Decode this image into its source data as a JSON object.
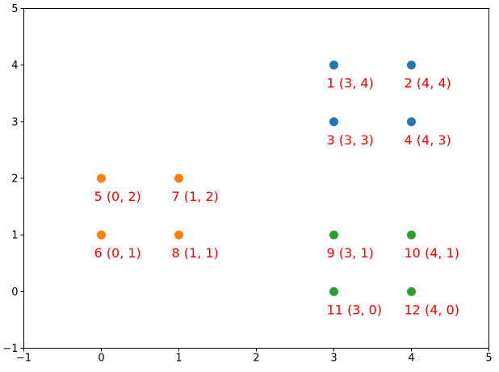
{
  "chart_data": {
    "type": "scatter",
    "xlim": [
      -1,
      5
    ],
    "ylim": [
      -1,
      5
    ],
    "xticks": [
      "−1",
      "0",
      "1",
      "2",
      "3",
      "4",
      "5"
    ],
    "yticks": [
      "−1",
      "0",
      "1",
      "2",
      "3",
      "4",
      "5"
    ],
    "grid": false,
    "label_color": "#ff0000",
    "series": [
      {
        "color": "#1f77b4",
        "points": [
          {
            "x": 3,
            "y": 4,
            "label": "1  (3, 4)"
          },
          {
            "x": 4,
            "y": 4,
            "label": "2  (4, 4)"
          },
          {
            "x": 3,
            "y": 3,
            "label": "3  (3, 3)"
          },
          {
            "x": 4,
            "y": 3,
            "label": "4  (4, 3)"
          }
        ]
      },
      {
        "color": "#ff7f0e",
        "points": [
          {
            "x": 0,
            "y": 2,
            "label": "5  (0, 2)"
          },
          {
            "x": 0,
            "y": 1,
            "label": "6  (0, 1)"
          },
          {
            "x": 1,
            "y": 2,
            "label": "7  (1, 2)"
          },
          {
            "x": 1,
            "y": 1,
            "label": "8  (1, 1)"
          }
        ]
      },
      {
        "color": "#2ca02c",
        "points": [
          {
            "x": 3,
            "y": 1,
            "label": "9  (3, 1)"
          },
          {
            "x": 4,
            "y": 1,
            "label": "10  (4, 1)"
          },
          {
            "x": 3,
            "y": 0,
            "label": "11  (3, 0)"
          },
          {
            "x": 4,
            "y": 0,
            "label": "12  (4, 0)"
          }
        ]
      }
    ]
  }
}
